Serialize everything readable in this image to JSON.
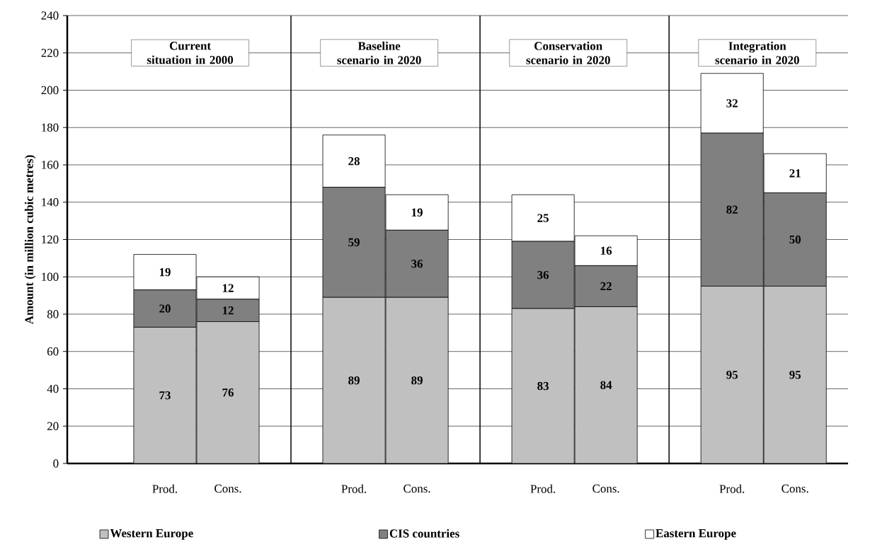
{
  "chart_data": {
    "type": "bar",
    "stacked": true,
    "ylabel": "Amount (in million cubic metres)",
    "categories": [
      "Prod.",
      "Cons.",
      "Prod.",
      "Cons.",
      "Prod.",
      "Cons.",
      "Prod.",
      "Cons."
    ],
    "series": [
      {
        "name": "Western Europe",
        "color": "#c0c0c0",
        "values": [
          73,
          76,
          89,
          89,
          83,
          84,
          95,
          95
        ]
      },
      {
        "name": "CIS countries",
        "color": "#808080",
        "values": [
          20,
          12,
          59,
          36,
          36,
          22,
          82,
          50
        ]
      },
      {
        "name": "Eastern Europe",
        "color": "#ffffff",
        "values": [
          19,
          12,
          28,
          19,
          25,
          16,
          32,
          21
        ]
      }
    ],
    "annotations": [
      "Current  situation in 2000",
      "Baseline scenario in 2020",
      "Conservation scenario in 2020",
      "Integration scenario in 2020"
    ],
    "ylim": [
      0,
      240
    ],
    "yticks": [
      0,
      20,
      40,
      60,
      80,
      100,
      120,
      140,
      160,
      180,
      200,
      220,
      240
    ],
    "grid": "y",
    "legend": "bottom",
    "data_labels": true
  }
}
